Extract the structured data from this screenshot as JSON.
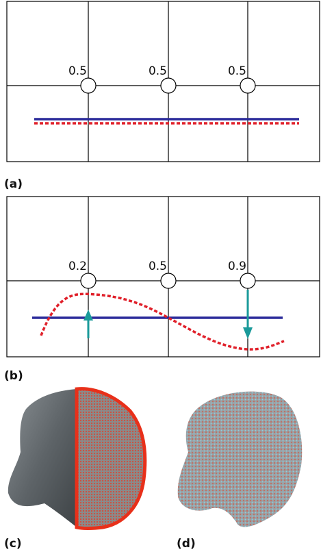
{
  "panel_a": {
    "weights": [
      "0.5",
      "0.5",
      "0.5"
    ],
    "caption": "(a)"
  },
  "panel_b": {
    "weights": [
      "0.2",
      "0.5",
      "0.9"
    ],
    "caption": "(b)"
  },
  "panel_c": {
    "caption": "(c)"
  },
  "panel_d": {
    "caption": "(d)"
  }
}
